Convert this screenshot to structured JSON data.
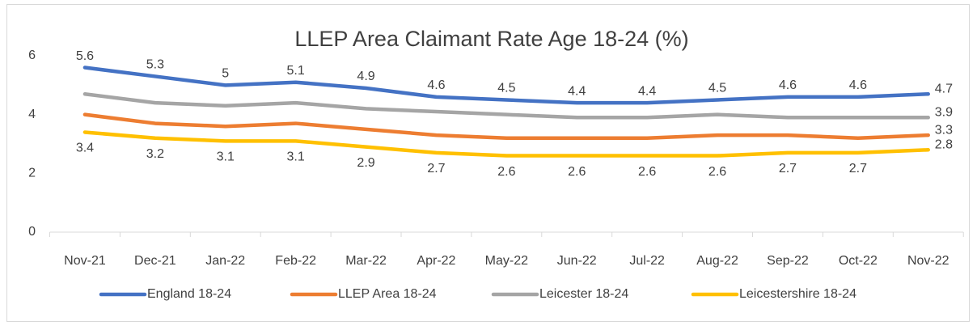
{
  "chart_data": {
    "type": "line",
    "title": "LLEP Area Claimant Rate Age 18-24 (%)",
    "categories": [
      "Nov-21",
      "Dec-21",
      "Jan-22",
      "Feb-22",
      "Mar-22",
      "Apr-22",
      "May-22",
      "Jun-22",
      "Jul-22",
      "Aug-22",
      "Sep-22",
      "Oct-22",
      "Nov-22"
    ],
    "series": [
      {
        "name": "England 18-24",
        "color": "#4472c4",
        "values": [
          5.6,
          5.3,
          5,
          5.1,
          4.9,
          4.6,
          4.5,
          4.4,
          4.4,
          4.5,
          4.6,
          4.6,
          4.7
        ],
        "data_labels": "all",
        "label_position": "above"
      },
      {
        "name": "LLEP Area 18-24",
        "color": "#ed7d31",
        "values": [
          4,
          3.7,
          3.6,
          3.7,
          3.5,
          3.3,
          3.2,
          3.2,
          3.2,
          3.3,
          3.3,
          3.2,
          3.3
        ],
        "data_labels": "last",
        "label_position": "right"
      },
      {
        "name": "Leicester 18-24",
        "color": "#a5a5a5",
        "values": [
          4.7,
          4.4,
          4.3,
          4.4,
          4.2,
          4.1,
          4,
          3.9,
          3.9,
          4,
          3.9,
          3.9,
          3.9
        ],
        "data_labels": "last",
        "label_position": "right"
      },
      {
        "name": "Leicestershire 18-24",
        "color": "#ffc000",
        "values": [
          3.4,
          3.2,
          3.1,
          3.1,
          2.9,
          2.7,
          2.6,
          2.6,
          2.6,
          2.6,
          2.7,
          2.7,
          2.8
        ],
        "data_labels": "all",
        "label_position": "below"
      }
    ],
    "ylim": [
      0,
      6
    ],
    "yticks": [
      0,
      2,
      4,
      6
    ],
    "grid": false,
    "legend": "bottom"
  }
}
